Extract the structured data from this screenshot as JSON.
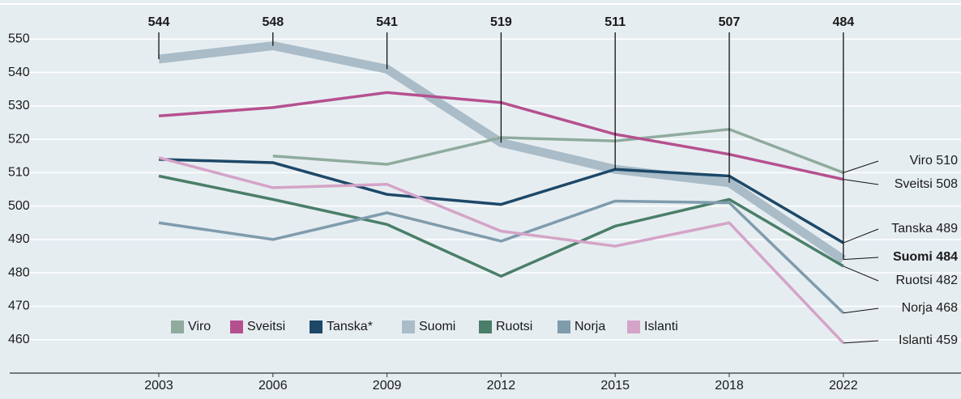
{
  "chart_data": {
    "type": "line",
    "categories": [
      "2003",
      "2006",
      "2009",
      "2012",
      "2015",
      "2018",
      "2022"
    ],
    "ylim": [
      450,
      560
    ],
    "yticks": [
      460,
      470,
      480,
      490,
      500,
      510,
      520,
      530,
      540,
      550
    ],
    "grid": true,
    "highlight_series": 3,
    "series": [
      {
        "name": "Viro",
        "label": "Viro",
        "color": "#8fab9e",
        "width": 3.5,
        "values": [
          null,
          515,
          512.5,
          520.5,
          519.5,
          523,
          510
        ]
      },
      {
        "name": "Sveitsi",
        "label": "Sveitsi",
        "color": "#b5508f",
        "width": 3.5,
        "values": [
          527,
          529.5,
          534,
          531,
          521.5,
          515.5,
          508
        ]
      },
      {
        "name": "Tanska*",
        "label": "Tanska",
        "color": "#1d4868",
        "width": 3.5,
        "values": [
          514,
          513,
          503.5,
          500.5,
          511,
          509,
          489
        ]
      },
      {
        "name": "Suomi",
        "label": "Suomi",
        "color": "#a9bcc8",
        "width": 11,
        "values": [
          544,
          548,
          541,
          519,
          511,
          507,
          484
        ]
      },
      {
        "name": "Ruotsi",
        "label": "Ruotsi",
        "color": "#4a7e68",
        "width": 3.5,
        "values": [
          509,
          502,
          494.5,
          479,
          494,
          502,
          482
        ]
      },
      {
        "name": "Norja",
        "label": "Norja",
        "color": "#7f9cad",
        "width": 3.5,
        "values": [
          495,
          490,
          498,
          489.5,
          501.5,
          501,
          468
        ]
      },
      {
        "name": "Islanti",
        "label": "Islanti",
        "color": "#d4a4c8",
        "width": 3.5,
        "values": [
          514.5,
          505.5,
          506.5,
          492.5,
          488,
          495,
          459
        ]
      }
    ]
  }
}
